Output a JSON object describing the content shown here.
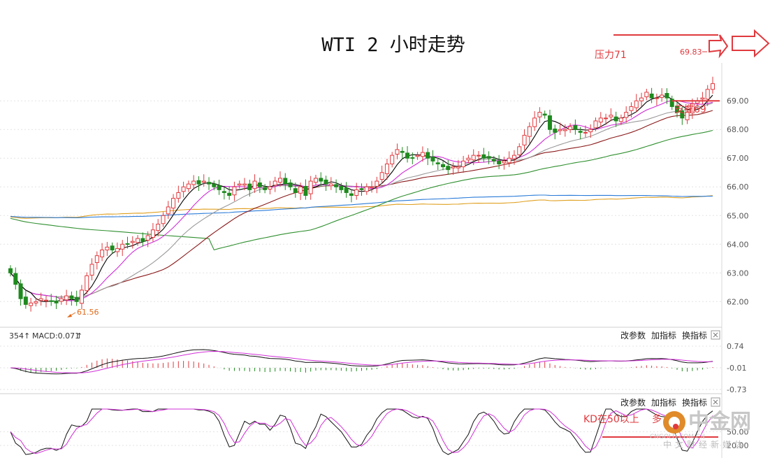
{
  "title": "WTI 2 小时走势",
  "annotations": {
    "resistance": "压力71",
    "support": "支撑69",
    "kd_note": "KD在50以上",
    "kd_note_tail": "多",
    "high_price": "69.83",
    "low_price": "61.56"
  },
  "resistance_level": 69.0,
  "macd_indicator": {
    "prefix": "354",
    "label": "MACD:0.071",
    "y_ticks": [
      "0.74",
      "-0.01",
      "-0.73"
    ]
  },
  "kd_indicator": {
    "y_ticks": [
      "50.00",
      "20.00"
    ]
  },
  "panel_buttons": [
    "改参数",
    "加指标",
    "换指标"
  ],
  "watermark": {
    "brand": "中金网",
    "subtitle": "中文财经新媒体",
    "url": "CNGOLD.COM.CN"
  },
  "colors": {
    "up": "#e0393e",
    "down": "#1e8a1e",
    "ma5": "#000000",
    "ma10": "#d12fd8",
    "ma20": "#9a9a9a",
    "ma30": "#8b1a1a",
    "ma60": "#2f8f2f",
    "ma120": "#2a7bd8",
    "ma250": "#e0a020",
    "annotation": "#e0393e"
  },
  "chart_data": {
    "type": "candlestick",
    "title": "WTI 2 小时走势",
    "ylim": [
      61.3,
      70.2
    ],
    "y_ticks": [
      62.0,
      63.0,
      64.0,
      65.0,
      66.0,
      67.0,
      68.0,
      69.0
    ],
    "grid": true,
    "close": [
      63.0,
      62.6,
      62.1,
      61.9,
      61.95,
      62.0,
      62.1,
      62.05,
      62.0,
      61.95,
      62.1,
      62.2,
      62.1,
      62.0,
      62.4,
      62.9,
      63.3,
      63.6,
      63.8,
      63.9,
      63.8,
      63.85,
      64.0,
      64.0,
      64.1,
      64.2,
      64.1,
      64.3,
      64.5,
      64.7,
      65.0,
      65.3,
      65.6,
      65.8,
      66.0,
      66.1,
      66.2,
      66.1,
      66.2,
      66.1,
      66.0,
      65.9,
      65.8,
      65.7,
      66.0,
      66.1,
      66.1,
      65.9,
      66.2,
      66.0,
      65.9,
      66.0,
      66.2,
      66.3,
      66.1,
      66.0,
      65.8,
      66.0,
      65.7,
      66.2,
      66.3,
      66.2,
      66.1,
      66.1,
      66.0,
      65.9,
      65.8,
      65.7,
      65.9,
      65.9,
      66.0,
      66.0,
      66.2,
      66.5,
      66.8,
      67.1,
      67.3,
      67.2,
      67.0,
      67.0,
      67.1,
      67.2,
      67.0,
      66.9,
      66.8,
      66.7,
      66.6,
      66.7,
      66.7,
      66.9,
      67.0,
      67.1,
      67.1,
      67.0,
      67.0,
      66.9,
      66.8,
      66.9,
      67.0,
      67.1,
      67.4,
      67.8,
      68.1,
      68.4,
      68.6,
      68.5,
      68.0,
      67.9,
      68.0,
      68.0,
      68.1,
      68.0,
      67.9,
      67.9,
      68.0,
      68.3,
      68.4,
      68.4,
      68.5,
      68.3,
      68.4,
      68.6,
      68.8,
      69.0,
      69.1,
      69.3,
      69.1,
      69.1,
      69.2,
      69.1,
      68.8,
      68.6,
      68.4,
      68.6,
      68.9,
      69.0,
      69.1,
      69.4,
      69.6
    ]
  }
}
